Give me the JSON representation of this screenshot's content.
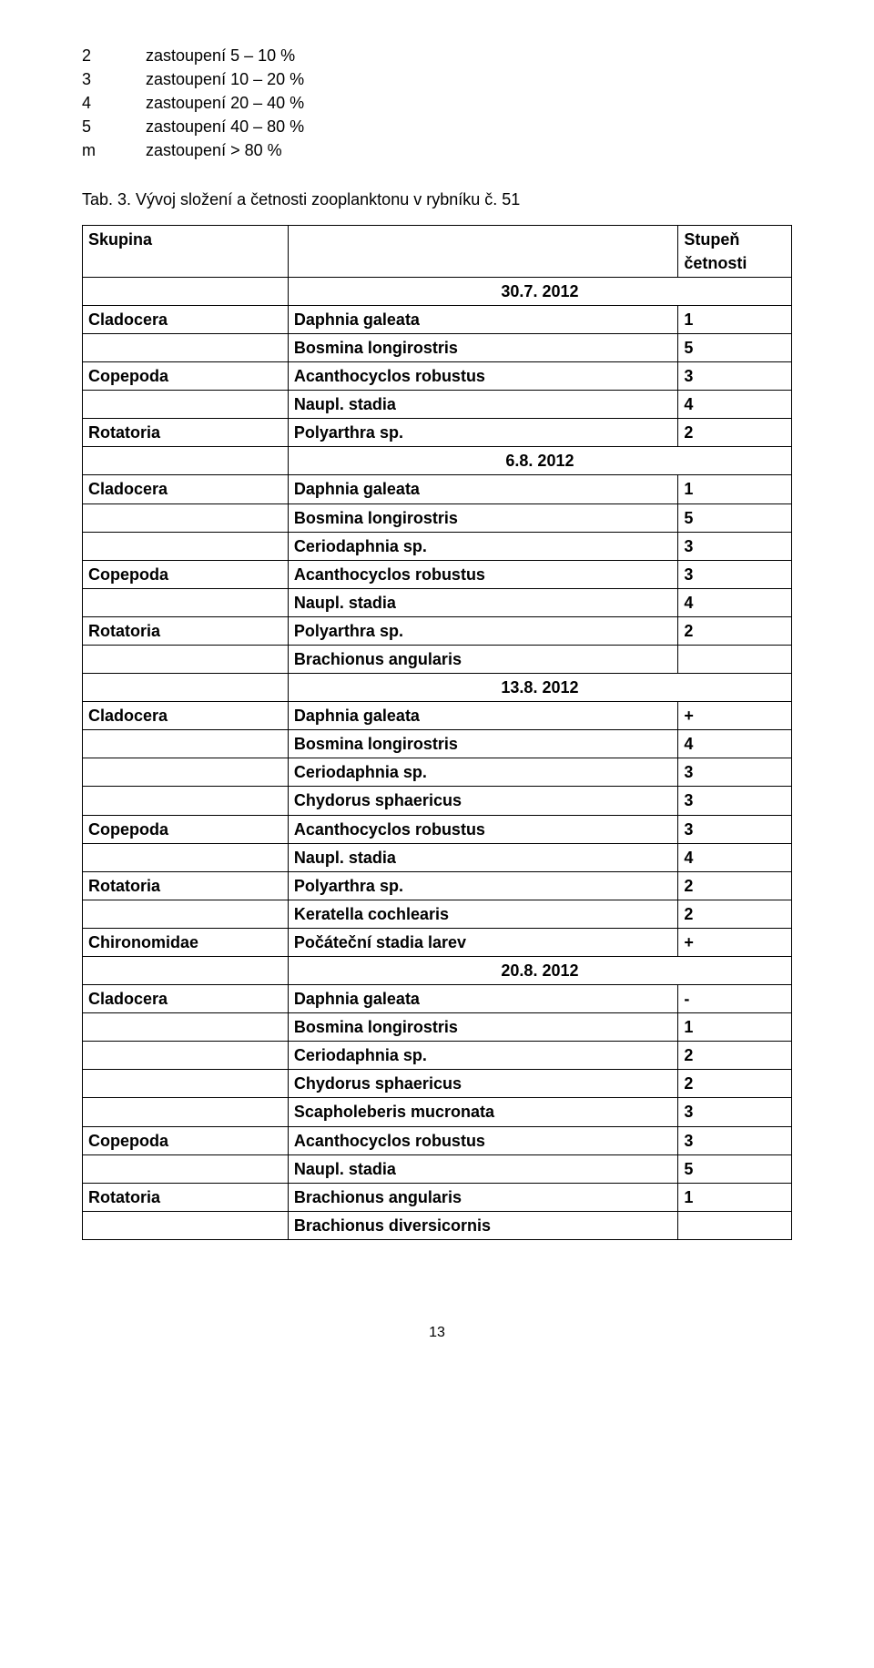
{
  "legend": [
    {
      "key": "2",
      "val": "zastoupení 5 – 10 %"
    },
    {
      "key": "3",
      "val": "zastoupení 10 – 20 %"
    },
    {
      "key": "4",
      "val": "zastoupení 20 – 40 %"
    },
    {
      "key": "5",
      "val": "zastoupení 40 – 80 %"
    },
    {
      "key": "m",
      "val": "zastoupení > 80 %"
    }
  ],
  "caption": "Tab. 3. Vývoj složení a četnosti zooplanktonu v rybníku č. 51",
  "header": {
    "a": "Skupina",
    "b": "",
    "c": "Stupeň četnosti"
  },
  "rows": [
    {
      "type": "date",
      "label": "30.7. 2012"
    },
    {
      "type": "triple",
      "a": "Cladocera",
      "b": "Daphnia galeata",
      "c": "1"
    },
    {
      "type": "pair",
      "b": "Bosmina longirostris",
      "c": "5"
    },
    {
      "type": "triple",
      "a": "Copepoda",
      "b": "Acanthocyclos robustus",
      "c": "3"
    },
    {
      "type": "pair",
      "b": "Naupl. stadia",
      "c": "4"
    },
    {
      "type": "triple",
      "a": "Rotatoria",
      "b": "Polyarthra sp.",
      "c": "2"
    },
    {
      "type": "date",
      "label": "6.8. 2012"
    },
    {
      "type": "triple",
      "a": "Cladocera",
      "b": "Daphnia galeata",
      "c": "1"
    },
    {
      "type": "pair",
      "b": "Bosmina longirostris",
      "c": "5"
    },
    {
      "type": "pair",
      "b": "Ceriodaphnia sp.",
      "c": "3"
    },
    {
      "type": "triple",
      "a": "Copepoda",
      "b": "Acanthocyclos robustus",
      "c": "3"
    },
    {
      "type": "pair",
      "b": "Naupl. stadia",
      "c": "4"
    },
    {
      "type": "triple",
      "a": "Rotatoria",
      "b": "Polyarthra sp.",
      "c": "2"
    },
    {
      "type": "pair",
      "b": "Brachionus angularis",
      "c": ""
    },
    {
      "type": "date",
      "label": "13.8. 2012"
    },
    {
      "type": "triple",
      "a": "Cladocera",
      "b": "Daphnia galeata",
      "c": "+"
    },
    {
      "type": "pair",
      "b": "Bosmina longirostris",
      "c": "4"
    },
    {
      "type": "pair",
      "b": "Ceriodaphnia sp.",
      "c": "3"
    },
    {
      "type": "pair",
      "b": "Chydorus sphaericus",
      "c": "3"
    },
    {
      "type": "triple",
      "a": "Copepoda",
      "b": "Acanthocyclos robustus",
      "c": "3"
    },
    {
      "type": "pair",
      "b": "Naupl. stadia",
      "c": "4"
    },
    {
      "type": "triple",
      "a": "Rotatoria",
      "b": "Polyarthra sp.",
      "c": "2"
    },
    {
      "type": "pair",
      "b": "Keratella cochlearis",
      "c": "2"
    },
    {
      "type": "triple",
      "a": "Chironomidae",
      "b": "Počáteční stadia larev",
      "c": "+"
    },
    {
      "type": "date",
      "label": "20.8. 2012"
    },
    {
      "type": "triple",
      "a": "Cladocera",
      "b": "Daphnia galeata",
      "c": "-"
    },
    {
      "type": "pair",
      "b": "Bosmina longirostris",
      "c": "1"
    },
    {
      "type": "pair",
      "b": "Ceriodaphnia sp.",
      "c": "2"
    },
    {
      "type": "pair",
      "b": "Chydorus sphaericus",
      "c": "2"
    },
    {
      "type": "pair",
      "b": "Scapholeberis mucronata",
      "c": "3"
    },
    {
      "type": "triple",
      "a": "Copepoda",
      "b": "Acanthocyclos robustus",
      "c": "3"
    },
    {
      "type": "pair",
      "b": "Naupl. stadia",
      "c": "5"
    },
    {
      "type": "triple",
      "a": "Rotatoria",
      "b": "Brachionus angularis",
      "c": "1"
    },
    {
      "type": "pair",
      "b": "Brachionus diversicornis",
      "c": ""
    }
  ],
  "pageNumber": "13"
}
